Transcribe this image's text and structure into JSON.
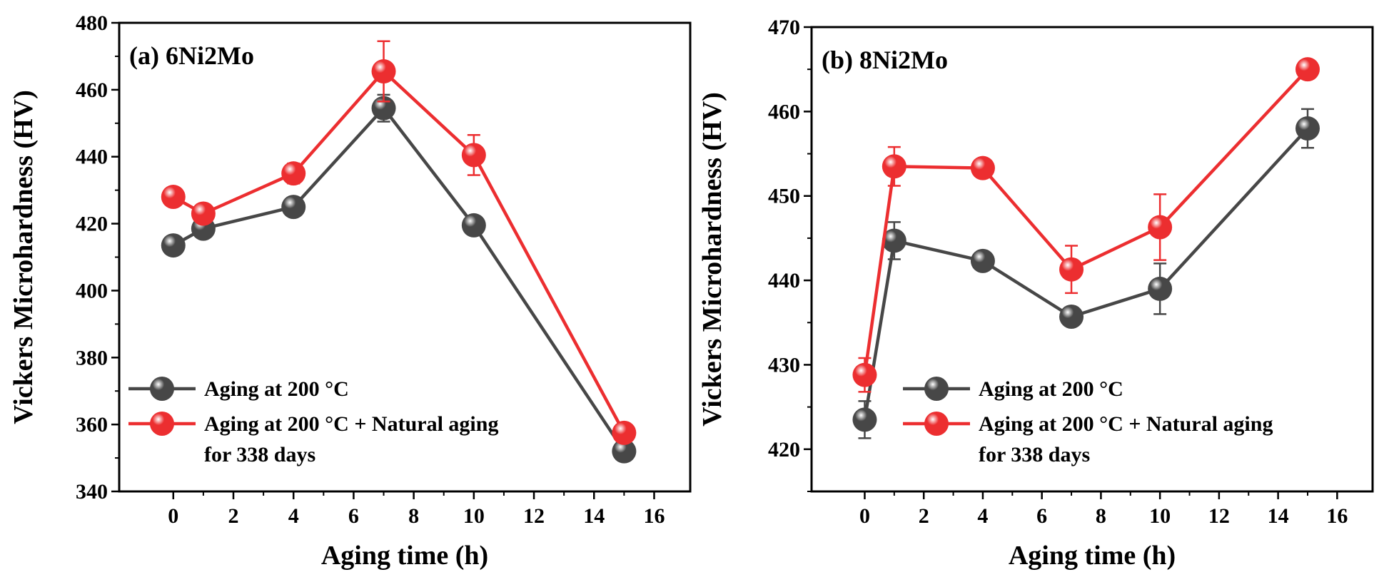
{
  "colors": {
    "series1": "#474747",
    "series2": "#ec2e30",
    "axis": "#000000"
  },
  "chart_data": [
    {
      "type": "line",
      "title": "(a) 6Ni2Mo",
      "xlabel": "Aging time (h)",
      "ylabel": "Vickers Microhardness (HV)",
      "xlim": [
        -1.8,
        17.2
      ],
      "ylim": [
        340,
        480
      ],
      "xticks": [
        0,
        2,
        4,
        6,
        8,
        10,
        12,
        14,
        16
      ],
      "yticks": [
        340,
        360,
        380,
        400,
        420,
        440,
        460,
        480
      ],
      "grid": false,
      "legend_position": "bottom-left",
      "x": [
        0,
        1,
        4,
        7,
        10,
        15
      ],
      "series": [
        {
          "name": "Aging at 200 °C",
          "values": [
            413.5,
            418.5,
            425,
            454.5,
            419.5,
            352
          ],
          "errors": [
            2,
            2,
            2,
            4,
            2,
            2
          ]
        },
        {
          "name": "Aging at 200 °C + Natural aging for 338 days",
          "legend_lines": [
            "Aging at 200 °C + Natural aging",
            "for 338 days"
          ],
          "values": [
            428,
            423,
            435,
            465.5,
            440.5,
            357.5
          ],
          "errors": [
            2,
            2,
            3,
            9,
            6,
            2
          ]
        }
      ]
    },
    {
      "type": "line",
      "title": "(b) 8Ni2Mo",
      "xlabel": "Aging time (h)",
      "ylabel": "Vickers Microhardness (HV)",
      "xlim": [
        -1.8,
        17.2
      ],
      "ylim": [
        415,
        470
      ],
      "xticks": [
        0,
        2,
        4,
        6,
        8,
        10,
        12,
        14,
        16
      ],
      "yticks": [
        420,
        430,
        440,
        450,
        460,
        470
      ],
      "grid": false,
      "legend_position": "bottom-left",
      "x": [
        0,
        1,
        4,
        7,
        10,
        15
      ],
      "series": [
        {
          "name": "Aging at 200 °C",
          "values": [
            423.5,
            444.7,
            442.3,
            435.7,
            439,
            458
          ],
          "errors": [
            2.2,
            2.2,
            1,
            1,
            3,
            2.3
          ]
        },
        {
          "name": "Aging at 200 °C + Natural aging for 338 days",
          "legend_lines": [
            "Aging at 200 °C + Natural aging",
            "for 338 days"
          ],
          "values": [
            428.8,
            453.5,
            453.3,
            441.3,
            446.3,
            465
          ],
          "errors": [
            2,
            2.3,
            0.8,
            2.8,
            3.9,
            1
          ]
        }
      ]
    }
  ]
}
